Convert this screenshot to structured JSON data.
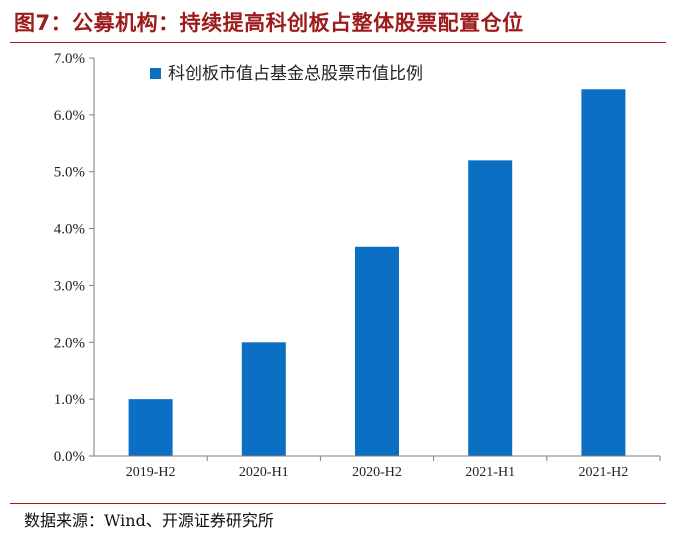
{
  "title": "图7：公募机构：持续提高科创板占整体股票配置仓位",
  "source": "数据来源：Wind、开源证券研究所",
  "colors": {
    "title": "#9e1b1b",
    "bar": "#0b6fc4",
    "axis": "#7f7f7f"
  },
  "chart_data": {
    "type": "bar",
    "categories": [
      "2019-H2",
      "2020-H1",
      "2020-H2",
      "2021-H1",
      "2021-H2"
    ],
    "series": [
      {
        "name": "科创板市值占基金总股票市值比例",
        "values": [
          1.0,
          2.0,
          3.68,
          5.2,
          6.45
        ]
      }
    ],
    "yticks": [
      "0.0%",
      "1.0%",
      "2.0%",
      "3.0%",
      "4.0%",
      "5.0%",
      "6.0%",
      "7.0%"
    ],
    "ylim": [
      0,
      7
    ],
    "legend_position": "top-left",
    "grid": false
  }
}
